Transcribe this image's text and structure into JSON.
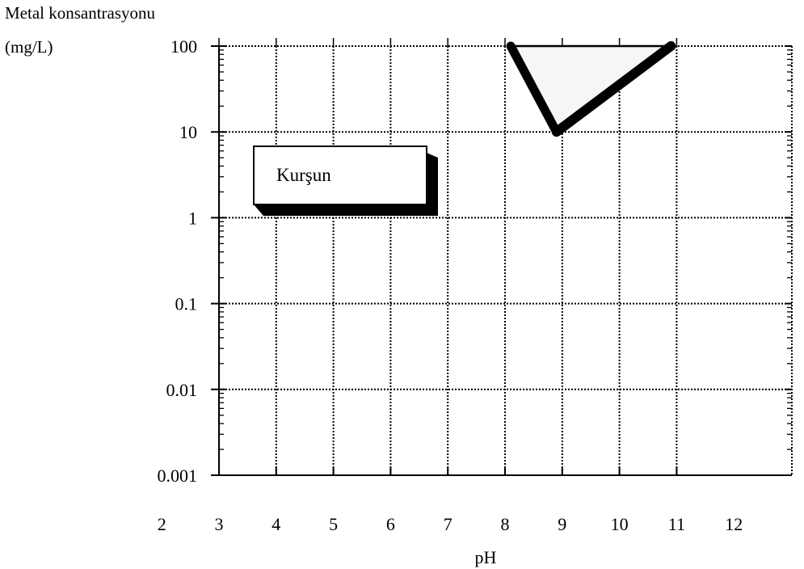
{
  "chart_data": {
    "type": "line",
    "title": "",
    "xlabel": "pH",
    "ylabel_lines": [
      "Metal konsantrasyonu",
      "(mg/L)"
    ],
    "xlim": [
      2,
      12
    ],
    "ylim": [
      0.001,
      100
    ],
    "yscale": "log",
    "x_ticks": [
      "2",
      "3",
      "4",
      "5",
      "6",
      "7",
      "8",
      "9",
      "10",
      "11",
      "12"
    ],
    "y_ticks": [
      "0.001",
      "0.01",
      "0.1",
      "1",
      "10",
      "100"
    ],
    "grid": true,
    "annotation": "Kurşun",
    "series": [
      {
        "x": [
          8.1,
          8.9,
          10.9,
          8.1
        ],
        "y": [
          100,
          10,
          100,
          100
        ]
      }
    ]
  }
}
